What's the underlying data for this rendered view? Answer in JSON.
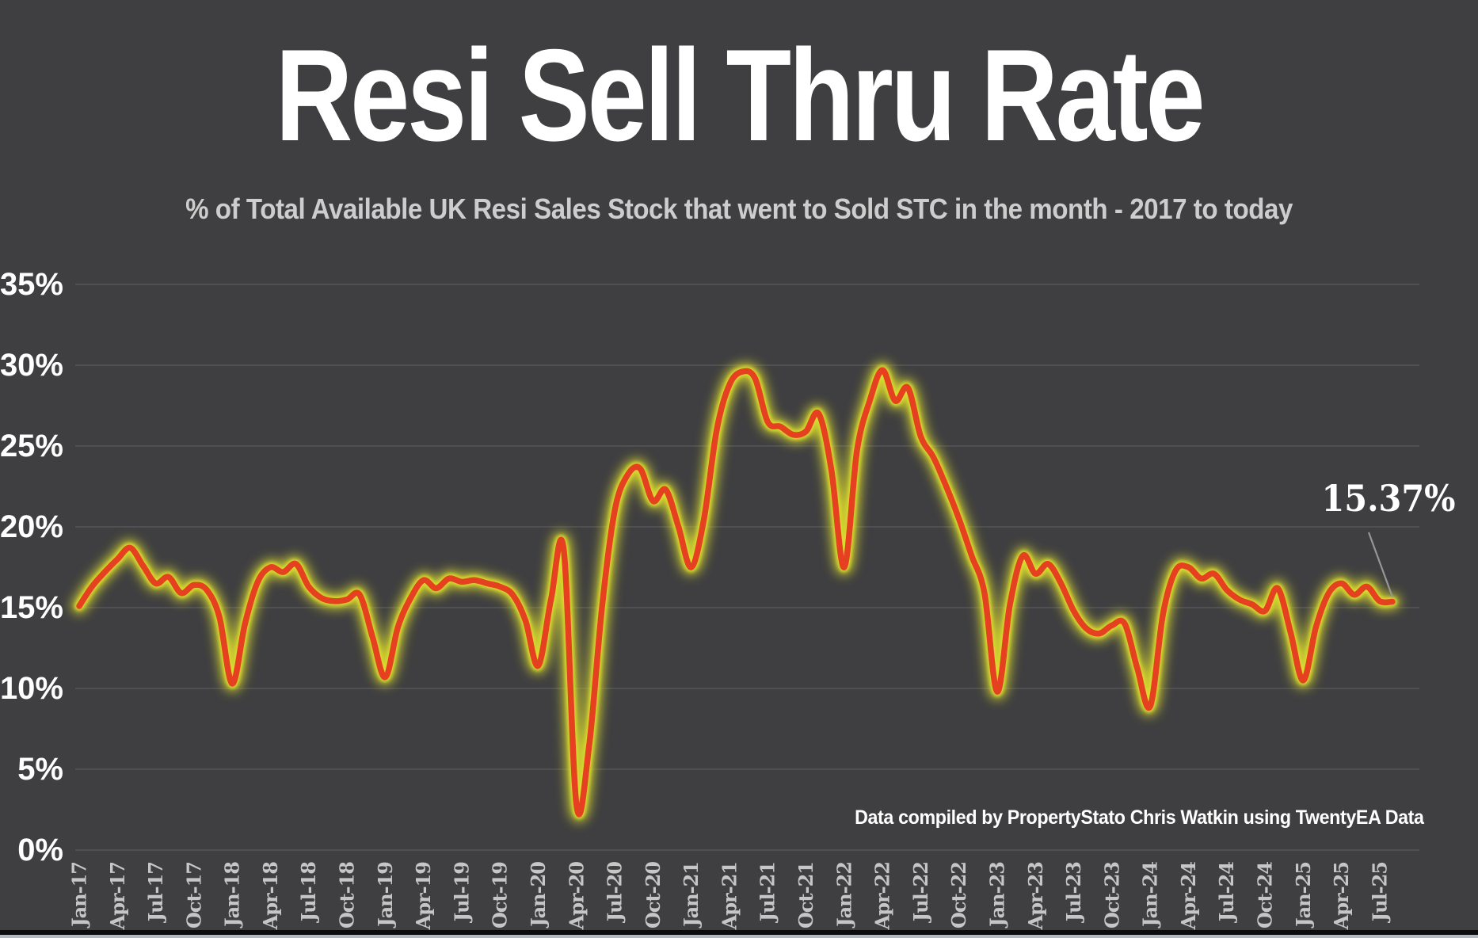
{
  "title": "Resi Sell Thru Rate",
  "subtitle": "% of Total Available UK Resi Sales Stock that went to Sold STC in the month - 2017 to today",
  "credit": "Data compiled by PropertyStato Chris Watkin using TwentyEA Data",
  "colors": {
    "background": "#3f3f41",
    "title_text": "#ffffff",
    "subtitle_text": "#cdcdcd",
    "gridline": "#5a5a5c",
    "y_axis_label": "#ffffff",
    "x_axis_label": "#c6c6c6",
    "line": "#e5401f",
    "glow": "#dcdd2e",
    "annotation_text": "#ffffff",
    "leader_line": "#969696"
  },
  "chart_data": {
    "type": "line",
    "title": "Resi Sell Thru Rate",
    "subtitle": "% of Total Available UK Resi Sales Stock that went to Sold STC in the month - 2017 to today",
    "series_name": "Resi sell thru rate (%)",
    "grid": "horizontal",
    "legend": "none",
    "ylim": [
      0,
      35
    ],
    "y_tick_labels": [
      "0%",
      "5%",
      "10%",
      "15%",
      "20%",
      "25%",
      "30%",
      "35%"
    ],
    "x_tick_every": 3,
    "x": [
      "Jan-17",
      "Feb-17",
      "Mar-17",
      "Apr-17",
      "May-17",
      "Jun-17",
      "Jul-17",
      "Aug-17",
      "Sep-17",
      "Oct-17",
      "Nov-17",
      "Dec-17",
      "Jan-18",
      "Feb-18",
      "Mar-18",
      "Apr-18",
      "May-18",
      "Jun-18",
      "Jul-18",
      "Aug-18",
      "Sep-18",
      "Oct-18",
      "Nov-18",
      "Dec-18",
      "Jan-19",
      "Feb-19",
      "Mar-19",
      "Apr-19",
      "May-19",
      "Jun-19",
      "Jul-19",
      "Aug-19",
      "Sep-19",
      "Oct-19",
      "Nov-19",
      "Dec-19",
      "Jan-20",
      "Feb-20",
      "Mar-20",
      "Apr-20",
      "May-20",
      "Jun-20",
      "Jul-20",
      "Aug-20",
      "Sep-20",
      "Oct-20",
      "Nov-20",
      "Dec-20",
      "Jan-21",
      "Feb-21",
      "Mar-21",
      "Apr-21",
      "May-21",
      "Jun-21",
      "Jul-21",
      "Aug-21",
      "Sep-21",
      "Oct-21",
      "Nov-21",
      "Dec-21",
      "Jan-22",
      "Feb-22",
      "Mar-22",
      "Apr-22",
      "May-22",
      "Jun-22",
      "Jul-22",
      "Aug-22",
      "Sep-22",
      "Oct-22",
      "Nov-22",
      "Dec-22",
      "Jan-23",
      "Feb-23",
      "Mar-23",
      "Apr-23",
      "May-23",
      "Jun-23",
      "Jul-23",
      "Aug-23",
      "Sep-23",
      "Oct-23",
      "Nov-23",
      "Dec-23",
      "Jan-24",
      "Feb-24",
      "Mar-24",
      "Apr-24",
      "May-24",
      "Jun-24",
      "Jul-24",
      "Aug-24",
      "Sep-24",
      "Oct-24",
      "Nov-24",
      "Dec-24",
      "Jan-25",
      "Feb-25",
      "Mar-25",
      "Apr-25",
      "May-25",
      "Jun-25",
      "Jul-25",
      "Aug-25"
    ],
    "values": [
      15.1,
      16.3,
      17.2,
      18.0,
      18.7,
      17.6,
      16.5,
      16.9,
      15.9,
      16.4,
      16.1,
      14.4,
      10.3,
      14.0,
      16.6,
      17.5,
      17.2,
      17.7,
      16.3,
      15.6,
      15.4,
      15.5,
      15.8,
      13.2,
      10.7,
      13.8,
      15.6,
      16.7,
      16.2,
      16.8,
      16.6,
      16.7,
      16.5,
      16.3,
      15.8,
      14.2,
      11.4,
      15.5,
      18.6,
      2.8,
      6.5,
      15.0,
      21.0,
      23.2,
      23.6,
      21.6,
      22.3,
      20.0,
      17.5,
      20.5,
      26.0,
      28.8,
      29.6,
      29.2,
      26.5,
      26.2,
      25.7,
      25.9,
      27.0,
      23.5,
      17.5,
      24.7,
      27.8,
      29.7,
      27.8,
      28.6,
      25.6,
      24.3,
      22.5,
      20.5,
      18.2,
      15.9,
      9.8,
      15.2,
      18.2,
      17.1,
      17.7,
      16.5,
      14.8,
      13.7,
      13.4,
      13.9,
      14.0,
      11.2,
      8.9,
      14.6,
      17.3,
      17.5,
      16.8,
      17.1,
      16.1,
      15.5,
      15.2,
      14.8,
      16.2,
      13.5,
      10.5,
      13.8,
      15.9,
      16.5,
      15.8,
      16.3,
      15.4,
      15.37
    ],
    "annotation": {
      "text": "15.37%",
      "x": "Aug-25",
      "y": 15.37
    }
  }
}
